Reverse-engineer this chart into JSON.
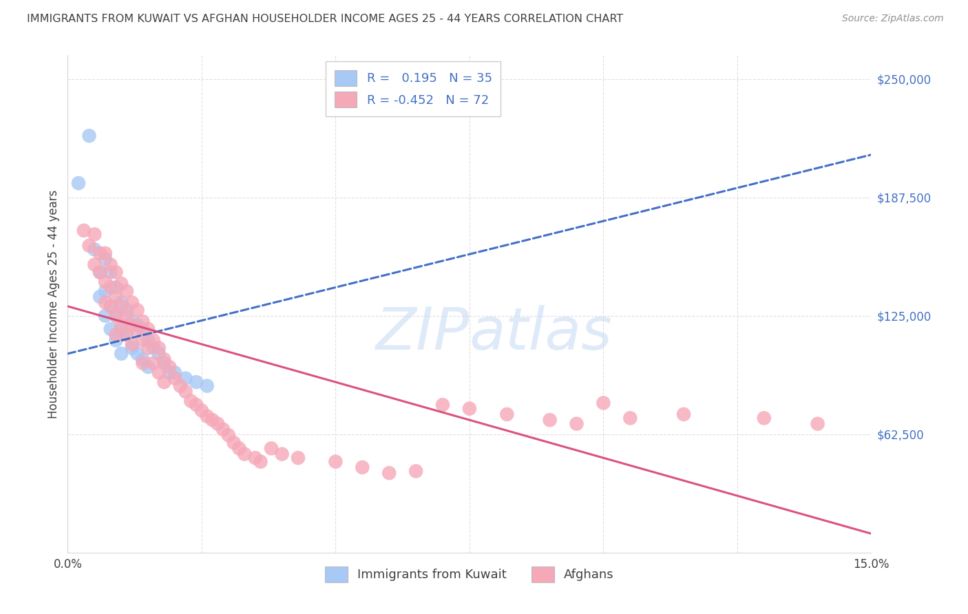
{
  "title": "IMMIGRANTS FROM KUWAIT VS AFGHAN HOUSEHOLDER INCOME AGES 25 - 44 YEARS CORRELATION CHART",
  "source": "Source: ZipAtlas.com",
  "ylabel": "Householder Income Ages 25 - 44 years",
  "xlim": [
    0.0,
    0.15
  ],
  "ylim": [
    0,
    262500
  ],
  "yticks": [
    62500,
    125000,
    187500,
    250000
  ],
  "ytick_labels": [
    "$62,500",
    "$125,000",
    "$187,500",
    "$250,000"
  ],
  "kuwait_color": "#a8c8f5",
  "afghan_color": "#f5a8b8",
  "kuwait_line_color": "#3060c0",
  "afghan_line_color": "#d84070",
  "label_color": "#4472c4",
  "text_color": "#404040",
  "source_color": "#909090",
  "grid_color": "#d8d8d8",
  "kuwait_points": [
    [
      0.002,
      195000
    ],
    [
      0.004,
      220000
    ],
    [
      0.005,
      160000
    ],
    [
      0.006,
      148000
    ],
    [
      0.006,
      135000
    ],
    [
      0.007,
      155000
    ],
    [
      0.007,
      138000
    ],
    [
      0.007,
      125000
    ],
    [
      0.008,
      148000
    ],
    [
      0.008,
      130000
    ],
    [
      0.008,
      118000
    ],
    [
      0.009,
      140000
    ],
    [
      0.009,
      125000
    ],
    [
      0.009,
      112000
    ],
    [
      0.01,
      132000
    ],
    [
      0.01,
      118000
    ],
    [
      0.01,
      105000
    ],
    [
      0.011,
      128000
    ],
    [
      0.011,
      115000
    ],
    [
      0.012,
      122000
    ],
    [
      0.012,
      108000
    ],
    [
      0.013,
      120000
    ],
    [
      0.013,
      105000
    ],
    [
      0.014,
      118000
    ],
    [
      0.014,
      102000
    ],
    [
      0.015,
      112000
    ],
    [
      0.015,
      98000
    ],
    [
      0.016,
      108000
    ],
    [
      0.017,
      105000
    ],
    [
      0.018,
      100000
    ],
    [
      0.019,
      95000
    ],
    [
      0.02,
      95000
    ],
    [
      0.022,
      92000
    ],
    [
      0.024,
      90000
    ],
    [
      0.026,
      88000
    ]
  ],
  "afghan_points": [
    [
      0.003,
      170000
    ],
    [
      0.004,
      162000
    ],
    [
      0.005,
      168000
    ],
    [
      0.005,
      152000
    ],
    [
      0.006,
      158000
    ],
    [
      0.006,
      148000
    ],
    [
      0.007,
      158000
    ],
    [
      0.007,
      143000
    ],
    [
      0.007,
      132000
    ],
    [
      0.008,
      152000
    ],
    [
      0.008,
      140000
    ],
    [
      0.008,
      130000
    ],
    [
      0.009,
      148000
    ],
    [
      0.009,
      135000
    ],
    [
      0.009,
      125000
    ],
    [
      0.009,
      115000
    ],
    [
      0.01,
      142000
    ],
    [
      0.01,
      130000
    ],
    [
      0.01,
      120000
    ],
    [
      0.011,
      138000
    ],
    [
      0.011,
      125000
    ],
    [
      0.011,
      115000
    ],
    [
      0.012,
      132000
    ],
    [
      0.012,
      120000
    ],
    [
      0.012,
      110000
    ],
    [
      0.013,
      128000
    ],
    [
      0.013,
      118000
    ],
    [
      0.014,
      122000
    ],
    [
      0.014,
      112000
    ],
    [
      0.014,
      100000
    ],
    [
      0.015,
      118000
    ],
    [
      0.015,
      108000
    ],
    [
      0.016,
      112000
    ],
    [
      0.016,
      100000
    ],
    [
      0.017,
      108000
    ],
    [
      0.017,
      95000
    ],
    [
      0.018,
      102000
    ],
    [
      0.018,
      90000
    ],
    [
      0.019,
      98000
    ],
    [
      0.02,
      92000
    ],
    [
      0.021,
      88000
    ],
    [
      0.022,
      85000
    ],
    [
      0.023,
      80000
    ],
    [
      0.024,
      78000
    ],
    [
      0.025,
      75000
    ],
    [
      0.026,
      72000
    ],
    [
      0.027,
      70000
    ],
    [
      0.028,
      68000
    ],
    [
      0.029,
      65000
    ],
    [
      0.03,
      62000
    ],
    [
      0.031,
      58000
    ],
    [
      0.032,
      55000
    ],
    [
      0.033,
      52000
    ],
    [
      0.035,
      50000
    ],
    [
      0.036,
      48000
    ],
    [
      0.038,
      55000
    ],
    [
      0.04,
      52000
    ],
    [
      0.043,
      50000
    ],
    [
      0.05,
      48000
    ],
    [
      0.055,
      45000
    ],
    [
      0.06,
      42000
    ],
    [
      0.065,
      43000
    ],
    [
      0.07,
      78000
    ],
    [
      0.075,
      76000
    ],
    [
      0.082,
      73000
    ],
    [
      0.09,
      70000
    ],
    [
      0.095,
      68000
    ],
    [
      0.1,
      79000
    ],
    [
      0.105,
      71000
    ],
    [
      0.115,
      73000
    ],
    [
      0.13,
      71000
    ],
    [
      0.14,
      68000
    ]
  ],
  "kuwait_trend_x": [
    0.0,
    0.15
  ],
  "kuwait_trend_y": [
    105000,
    210000
  ],
  "afghan_trend_x": [
    0.0,
    0.15
  ],
  "afghan_trend_y": [
    130000,
    10000
  ]
}
